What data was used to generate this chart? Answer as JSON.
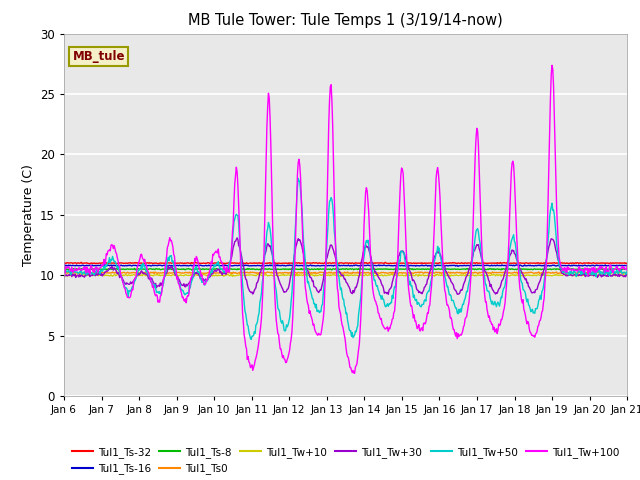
{
  "title": "MB Tule Tower: Tule Temps 1 (3/19/14-now)",
  "ylabel": "Temperature (C)",
  "ylim": [
    0,
    30
  ],
  "yticks": [
    0,
    5,
    10,
    15,
    20,
    25,
    30
  ],
  "xtick_labels": [
    "Jan 6",
    "Jan 7",
    "Jan 8",
    "Jan 9",
    "Jan 10",
    "Jan 11",
    "Jan 12",
    "Jan 13",
    "Jan 14",
    "Jan 15",
    "Jan 16",
    "Jan 17",
    "Jan 18",
    "Jan 19",
    "Jan 20",
    "Jan 21"
  ],
  "bg_color": "#e8e8e8",
  "legend_box_color": "#f5f0c8",
  "legend_box_edge": "#999900",
  "legend_label_color": "#800000",
  "series_order": [
    "Tul1_Ts-32",
    "Tul1_Ts-16",
    "Tul1_Ts-8",
    "Tul1_Ts0",
    "Tul1_Tw+10",
    "Tul1_Tw+30",
    "Tul1_Tw+50",
    "Tul1_Tw+100"
  ],
  "series": {
    "Tul1_Ts-32": {
      "color": "#ff0000",
      "lw": 1.0
    },
    "Tul1_Ts-16": {
      "color": "#0000cc",
      "lw": 1.0
    },
    "Tul1_Ts-8": {
      "color": "#00bb00",
      "lw": 1.0
    },
    "Tul1_Ts0": {
      "color": "#ff8800",
      "lw": 1.0
    },
    "Tul1_Tw+10": {
      "color": "#cccc00",
      "lw": 1.0
    },
    "Tul1_Tw+30": {
      "color": "#9900cc",
      "lw": 1.0
    },
    "Tul1_Tw+50": {
      "color": "#00cccc",
      "lw": 1.0
    },
    "Tul1_Tw+100": {
      "color": "#ff00ff",
      "lw": 1.0
    }
  },
  "legend_rows": [
    [
      "Tul1_Ts-32",
      "Tul1_Ts-16",
      "Tul1_Ts-8",
      "Tul1_Ts0",
      "Tul1_Tw+10",
      "Tul1_Tw+30"
    ],
    [
      "Tul1_Tw+50",
      "Tul1_Tw+100"
    ]
  ]
}
